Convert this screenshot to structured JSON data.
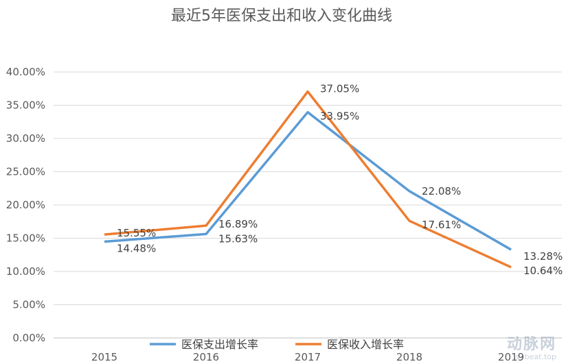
{
  "chart_data": {
    "type": "line",
    "title": "最近5年医保支出和收入变化曲线",
    "categories": [
      "2015",
      "2016",
      "2017",
      "2018",
      "2019"
    ],
    "yticks": [
      "0.00%",
      "5.00%",
      "10.00%",
      "15.00%",
      "20.00%",
      "25.00%",
      "30.00%",
      "35.00%",
      "40.00%"
    ],
    "ylim": [
      0,
      40
    ],
    "grid": true,
    "legend_position": "bottom",
    "series": [
      {
        "name": "医保支出增长率",
        "color": "#5b9bd5",
        "values": [
          14.48,
          15.63,
          33.95,
          22.08,
          13.28
        ],
        "labels": [
          "14.48%",
          "15.63%",
          "33.95%",
          "22.08%",
          "13.28%"
        ]
      },
      {
        "name": "医保收入增长率",
        "color": "#ed7d31",
        "values": [
          15.55,
          16.89,
          37.05,
          17.61,
          10.64
        ],
        "labels": [
          "15.55%",
          "16.89%",
          "37.05%",
          "17.61%",
          "10.64%"
        ]
      }
    ]
  },
  "watermark": {
    "logo_text": "动脉网",
    "site": "vcbeat.top"
  }
}
